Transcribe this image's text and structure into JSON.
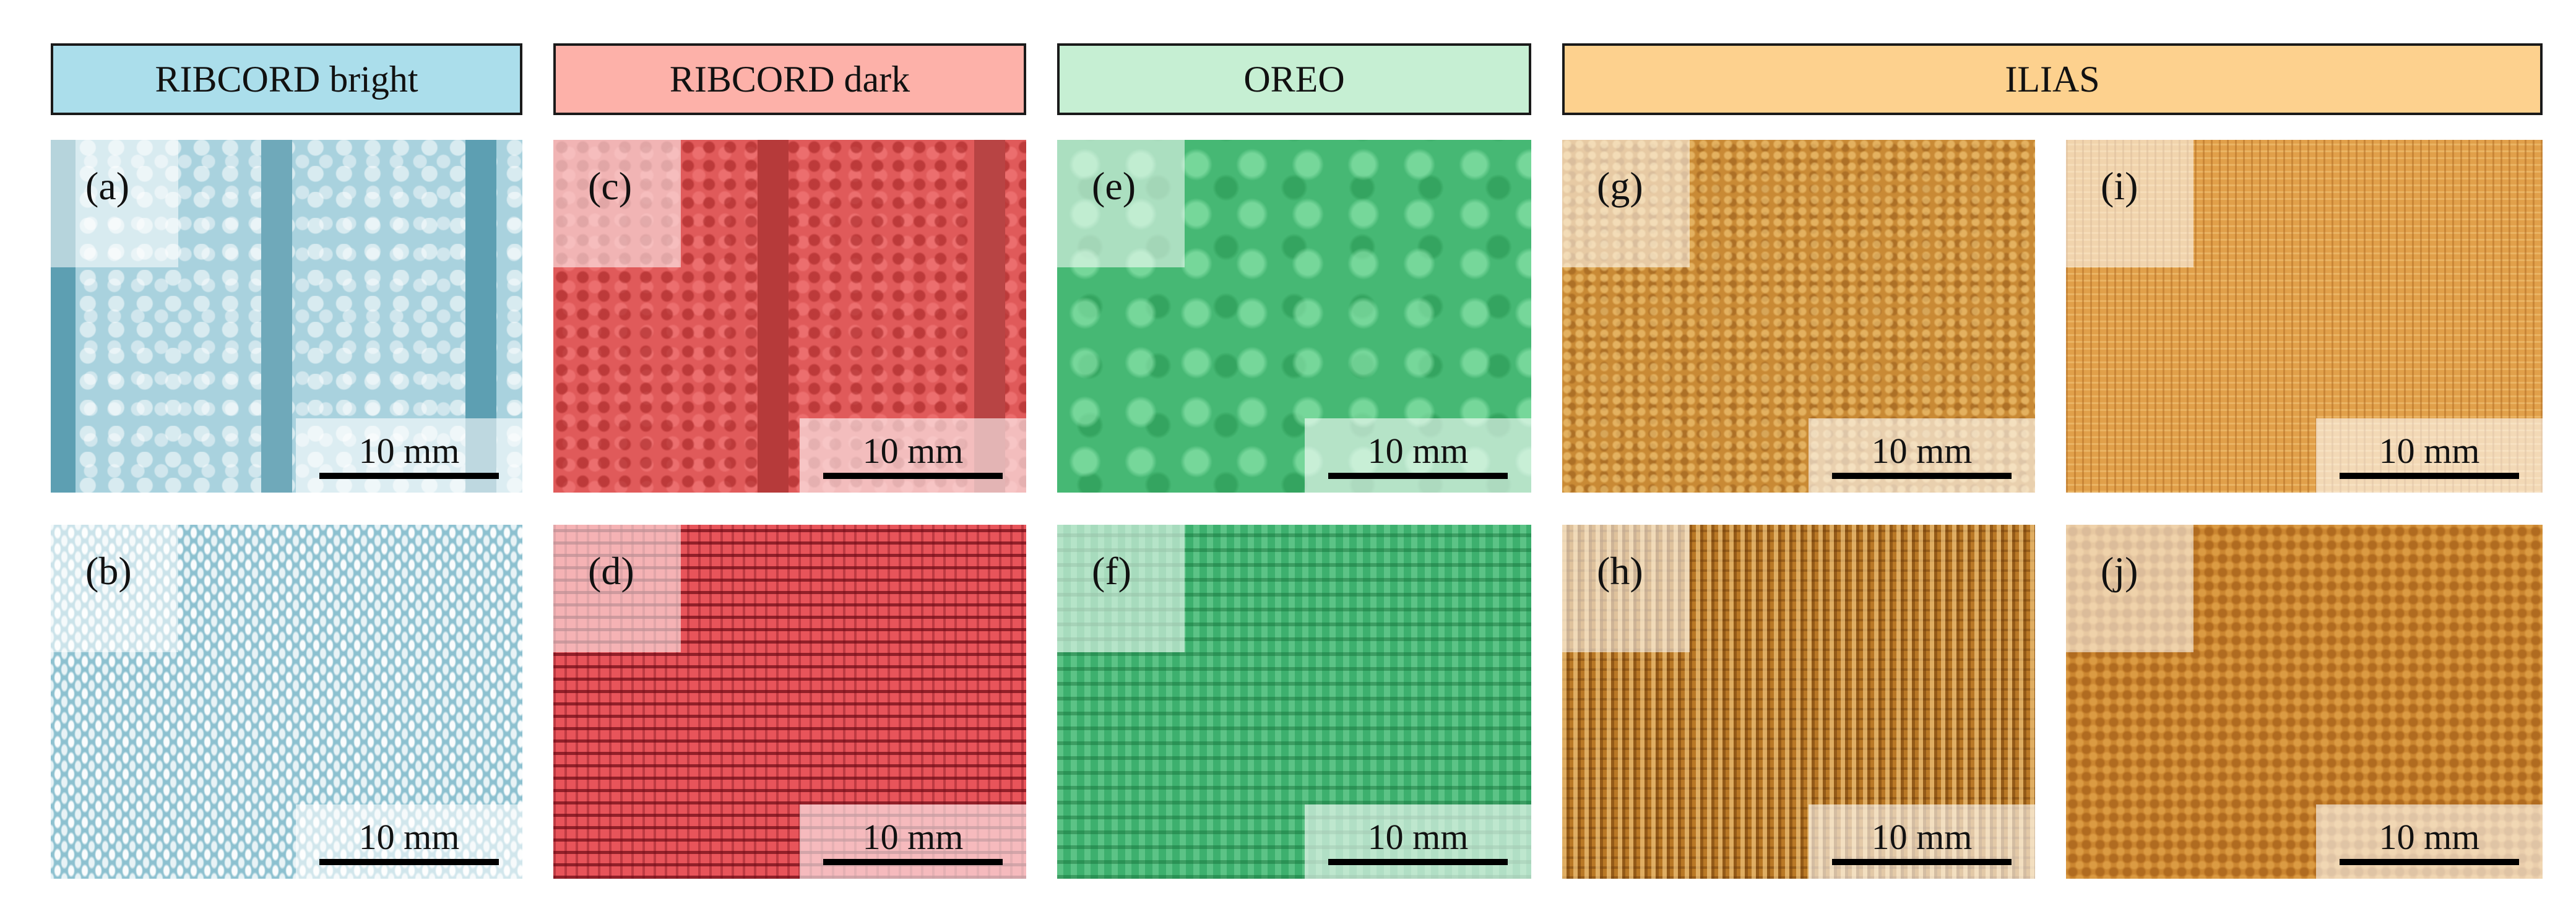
{
  "headers": {
    "ribcord_bright": "RIBCORD bright",
    "ribcord_dark": "RIBCORD dark",
    "oreo": "OREO",
    "ilias": "ILIAS"
  },
  "colors": {
    "ribcord_bright_header": "#ABDEEB",
    "ribcord_dark_header": "#FDB1A9",
    "oreo_header": "#C6EFD3",
    "ilias_header": "#FDD18E",
    "ribcord_bright": "#8CC2D2",
    "ribcord_dark": "#EC5A58",
    "oreo": "#4CC27F",
    "ilias": "#D7933A"
  },
  "panels": {
    "a": {
      "label": "(a)",
      "scale": "10 mm"
    },
    "b": {
      "label": "(b)",
      "scale": "10 mm"
    },
    "c": {
      "label": "(c)",
      "scale": "10 mm"
    },
    "d": {
      "label": "(d)",
      "scale": "10 mm"
    },
    "e": {
      "label": "(e)",
      "scale": "10 mm"
    },
    "f": {
      "label": "(f)",
      "scale": "10 mm"
    },
    "g": {
      "label": "(g)",
      "scale": "10 mm"
    },
    "h": {
      "label": "(h)",
      "scale": "10 mm"
    },
    "i": {
      "label": "(i)",
      "scale": "10 mm"
    },
    "j": {
      "label": "(j)",
      "scale": "10 mm"
    }
  }
}
